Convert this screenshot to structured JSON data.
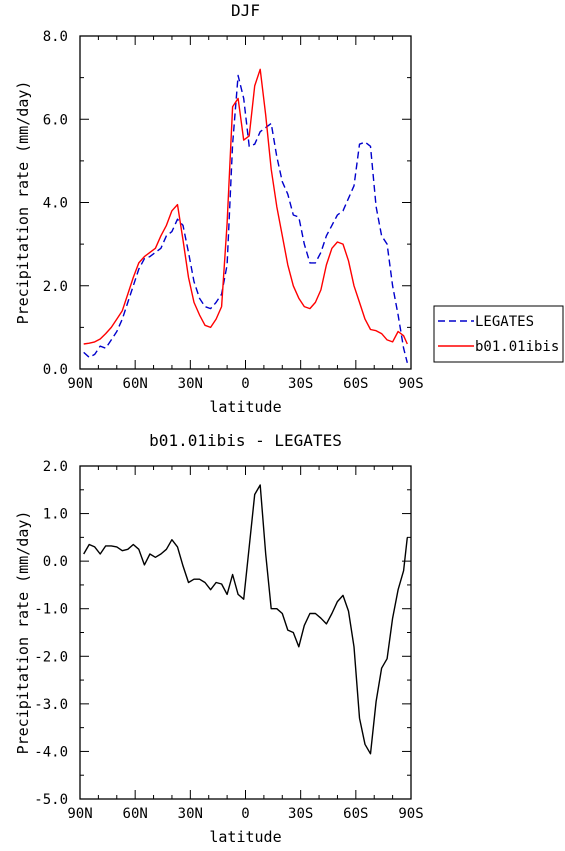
{
  "chart_data": [
    {
      "type": "line",
      "title": "DJF",
      "xlabel": "latitude",
      "ylabel": "Precipitation rate (mm/day)",
      "xlim": [
        -90,
        90
      ],
      "ylim": [
        0,
        8
      ],
      "x_tick_values": [
        -90,
        -60,
        -30,
        0,
        30,
        60,
        90
      ],
      "x_tick_labels": [
        "90N",
        "60N",
        "30N",
        "0",
        "30S",
        "60S",
        "90S"
      ],
      "y_tick_values": [
        0,
        2,
        4,
        6,
        8
      ],
      "y_tick_labels": [
        "0.0",
        "2.0",
        "4.0",
        "6.0",
        "8.0"
      ],
      "legend_position": "right",
      "series": [
        {
          "name": "LEGATES",
          "color": "#0000cc",
          "dash": "dashed",
          "x": [
            -88,
            -85,
            -82,
            -79,
            -76,
            -73,
            -70,
            -67,
            -64,
            -61,
            -58,
            -55,
            -52,
            -49,
            -46,
            -43,
            -40,
            -37,
            -34,
            -31,
            -28,
            -25,
            -22,
            -19,
            -16,
            -13,
            -10,
            -7,
            -4,
            -1,
            2,
            5,
            8,
            11,
            14,
            17,
            20,
            23,
            26,
            29,
            32,
            35,
            38,
            41,
            44,
            47,
            50,
            53,
            56,
            59,
            62,
            65,
            68,
            71,
            74,
            77,
            80,
            83,
            86,
            88
          ],
          "y": [
            0.4,
            0.28,
            0.35,
            0.55,
            0.5,
            0.7,
            0.9,
            1.2,
            1.6,
            2.0,
            2.4,
            2.65,
            2.7,
            2.8,
            2.9,
            3.2,
            3.3,
            3.6,
            3.45,
            2.8,
            2.1,
            1.7,
            1.5,
            1.45,
            1.6,
            1.8,
            2.5,
            5.4,
            7.05,
            6.5,
            5.35,
            5.4,
            5.7,
            5.8,
            5.9,
            5.1,
            4.5,
            4.2,
            3.7,
            3.65,
            3.0,
            2.55,
            2.55,
            2.8,
            3.2,
            3.45,
            3.7,
            3.8,
            4.1,
            4.4,
            5.4,
            5.45,
            5.35,
            3.9,
            3.2,
            3.0,
            2.0,
            1.3,
            0.5,
            0.15
          ]
        },
        {
          "name": "b01.01ibis",
          "color": "#ff0000",
          "dash": "solid",
          "x": [
            -88,
            -85,
            -82,
            -79,
            -76,
            -73,
            -70,
            -67,
            -64,
            -61,
            -58,
            -55,
            -52,
            -49,
            -46,
            -43,
            -40,
            -37,
            -34,
            -31,
            -28,
            -25,
            -22,
            -19,
            -16,
            -13,
            -10,
            -7,
            -4,
            -1,
            2,
            5,
            8,
            11,
            14,
            17,
            20,
            23,
            26,
            29,
            32,
            35,
            38,
            41,
            44,
            47,
            50,
            53,
            56,
            59,
            62,
            65,
            68,
            71,
            74,
            77,
            80,
            83,
            86,
            88
          ],
          "y": [
            0.6,
            0.62,
            0.65,
            0.72,
            0.85,
            1.0,
            1.2,
            1.4,
            1.8,
            2.2,
            2.55,
            2.7,
            2.8,
            2.9,
            3.2,
            3.45,
            3.8,
            3.95,
            3.1,
            2.2,
            1.6,
            1.3,
            1.05,
            1.0,
            1.2,
            1.5,
            3.5,
            6.3,
            6.5,
            5.5,
            5.6,
            6.8,
            7.2,
            6.1,
            4.8,
            3.9,
            3.2,
            2.5,
            2.0,
            1.7,
            1.5,
            1.45,
            1.6,
            1.9,
            2.5,
            2.9,
            3.05,
            3.0,
            2.6,
            2.0,
            1.6,
            1.2,
            0.95,
            0.92,
            0.85,
            0.7,
            0.65,
            0.9,
            0.8,
            0.6
          ]
        }
      ]
    },
    {
      "type": "line",
      "title": "b01.01ibis - LEGATES",
      "xlabel": "latitude",
      "ylabel": "Precipitation rate (mm/day)",
      "xlim": [
        -90,
        90
      ],
      "ylim": [
        -5,
        2
      ],
      "x_tick_values": [
        -90,
        -60,
        -30,
        0,
        30,
        60,
        90
      ],
      "x_tick_labels": [
        "90N",
        "60N",
        "30N",
        "0",
        "30S",
        "60S",
        "90S"
      ],
      "y_tick_values": [
        -5,
        -4,
        -3,
        -2,
        -1,
        0,
        1,
        2
      ],
      "y_tick_labels": [
        "-5.0",
        "-4.0",
        "-3.0",
        "-2.0",
        "-1.0",
        "0.0",
        "1.0",
        "2.0"
      ],
      "series": [
        {
          "color": "#000000",
          "dash": "solid",
          "x": [
            -88,
            -85,
            -82,
            -79,
            -76,
            -73,
            -70,
            -67,
            -64,
            -61,
            -58,
            -55,
            -52,
            -49,
            -46,
            -43,
            -40,
            -37,
            -34,
            -31,
            -28,
            -25,
            -22,
            -19,
            -16,
            -13,
            -10,
            -7,
            -4,
            -1,
            2,
            5,
            8,
            11,
            14,
            17,
            20,
            23,
            26,
            29,
            32,
            35,
            38,
            41,
            44,
            47,
            50,
            53,
            56,
            59,
            62,
            65,
            68,
            71,
            74,
            77,
            80,
            83,
            86,
            88
          ],
          "y": [
            0.15,
            0.35,
            0.3,
            0.15,
            0.32,
            0.32,
            0.3,
            0.22,
            0.25,
            0.35,
            0.25,
            -0.08,
            0.15,
            0.08,
            0.15,
            0.25,
            0.45,
            0.3,
            -0.1,
            -0.45,
            -0.38,
            -0.38,
            -0.45,
            -0.6,
            -0.45,
            -0.48,
            -0.7,
            -0.28,
            -0.7,
            -0.8,
            0.3,
            1.4,
            1.6,
            0.15,
            -1.0,
            -1.0,
            -1.1,
            -1.45,
            -1.5,
            -1.8,
            -1.35,
            -1.1,
            -1.1,
            -1.2,
            -1.32,
            -1.1,
            -0.85,
            -0.72,
            -1.05,
            -1.8,
            -3.3,
            -3.85,
            -4.05,
            -2.95,
            -2.25,
            -2.05,
            -1.2,
            -0.6,
            -0.2,
            0.5
          ]
        }
      ]
    }
  ]
}
